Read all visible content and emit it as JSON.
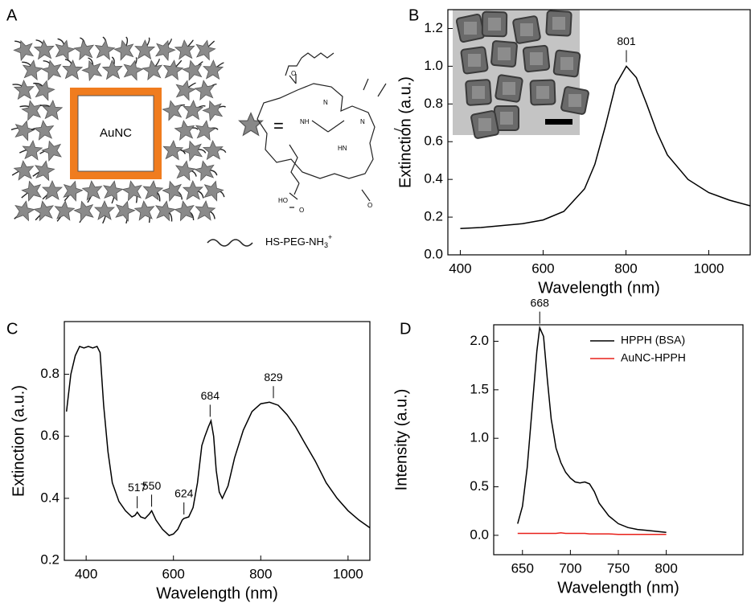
{
  "diagram": {
    "panel_label": "A",
    "core_label": "AuNC",
    "equals": "=",
    "molecule_labels": [
      "NH",
      "N",
      "N",
      "HN",
      "HO",
      "O",
      "O",
      "O"
    ],
    "legend_parts": [
      "HS-PEG-NH",
      "3",
      "+"
    ]
  },
  "chart_data": [
    {
      "type": "line",
      "panel_label": "B",
      "x_label": "Wavelength (nm)",
      "y_label": "Extinction (a.u.)",
      "x": [
        400,
        450,
        500,
        550,
        600,
        650,
        700,
        725,
        750,
        775,
        801,
        825,
        850,
        875,
        900,
        950,
        1000,
        1050,
        1100
      ],
      "series": [
        {
          "color": "#000000",
          "values": [
            0.14,
            0.145,
            0.155,
            0.165,
            0.185,
            0.23,
            0.35,
            0.48,
            0.68,
            0.9,
            1.0,
            0.94,
            0.8,
            0.65,
            0.53,
            0.4,
            0.33,
            0.29,
            0.26
          ]
        }
      ],
      "xlim": [
        370,
        1100
      ],
      "ylim": [
        0,
        1.3
      ],
      "xticks": [
        400,
        600,
        800,
        1000
      ],
      "yticks": [
        {
          "value": 0,
          "label": "0.0"
        },
        0.2,
        0.4,
        0.6,
        0.8,
        {
          "value": 1,
          "label": "1.0"
        },
        1.2
      ],
      "annotations": [
        {
          "x": 801,
          "y": 1.0
        }
      ]
    },
    {
      "type": "line",
      "panel_label": "C",
      "x_label": "Wavelength (nm)",
      "y_label": "Extinction (a.u.)",
      "x": [
        355,
        365,
        375,
        385,
        395,
        405,
        415,
        425,
        432,
        440,
        450,
        460,
        475,
        490,
        505,
        512,
        517,
        525,
        535,
        545,
        550,
        560,
        575,
        590,
        600,
        610,
        620,
        624,
        635,
        645,
        655,
        665,
        672,
        680,
        686,
        692,
        698,
        705,
        712,
        725,
        740,
        760,
        780,
        800,
        820,
        840,
        860,
        880,
        900,
        925,
        950,
        975,
        1000,
        1025,
        1050
      ],
      "series": [
        {
          "color": "#000000",
          "values": [
            0.68,
            0.8,
            0.86,
            0.89,
            0.885,
            0.89,
            0.885,
            0.89,
            0.87,
            0.7,
            0.55,
            0.45,
            0.39,
            0.36,
            0.34,
            0.345,
            0.355,
            0.34,
            0.335,
            0.35,
            0.36,
            0.33,
            0.3,
            0.28,
            0.285,
            0.3,
            0.33,
            0.335,
            0.34,
            0.37,
            0.45,
            0.57,
            0.6,
            0.63,
            0.65,
            0.6,
            0.49,
            0.42,
            0.4,
            0.44,
            0.53,
            0.62,
            0.68,
            0.705,
            0.71,
            0.7,
            0.67,
            0.63,
            0.58,
            0.52,
            0.45,
            0.4,
            0.36,
            0.33,
            0.305
          ]
        }
      ],
      "xlim": [
        350,
        1050
      ],
      "ylim": [
        0.2,
        0.97
      ],
      "xticks": [
        400,
        600,
        800,
        1000
      ],
      "yticks": [
        0.2,
        0.4,
        0.6,
        0.8
      ],
      "annotations": [
        {
          "x": 517,
          "y": 0.355
        },
        {
          "x": 550,
          "y": 0.36
        },
        {
          "x": 624,
          "y": 0.335
        },
        {
          "x": 684,
          "y": 0.65
        },
        {
          "x": 829,
          "y": 0.71
        }
      ]
    },
    {
      "type": "line",
      "panel_label": "D",
      "x_label": "Wavelength (nm)",
      "y_label": "Intensity (a.u.)",
      "x": [
        645,
        650,
        655,
        660,
        665,
        668,
        672,
        676,
        680,
        685,
        690,
        695,
        700,
        705,
        710,
        715,
        720,
        725,
        730,
        740,
        750,
        760,
        770,
        780,
        790,
        800
      ],
      "series": [
        {
          "name": "HPPH (BSA)",
          "color": "#000000",
          "values": [
            0.12,
            0.3,
            0.7,
            1.3,
            1.9,
            2.14,
            2.05,
            1.6,
            1.2,
            0.9,
            0.75,
            0.65,
            0.59,
            0.55,
            0.54,
            0.55,
            0.53,
            0.45,
            0.33,
            0.2,
            0.12,
            0.08,
            0.06,
            0.05,
            0.04,
            0.03
          ]
        },
        {
          "name": "AuNC-HPPH",
          "color": "#e8201a",
          "values": [
            0.02,
            0.02,
            0.02,
            0.02,
            0.02,
            0.02,
            0.02,
            0.02,
            0.02,
            0.02,
            0.025,
            0.02,
            0.02,
            0.02,
            0.02,
            0.02,
            0.015,
            0.015,
            0.015,
            0.015,
            0.01,
            0.01,
            0.01,
            0.01,
            0.01,
            0.01
          ]
        }
      ],
      "xlim": [
        620,
        880
      ],
      "ylim": [
        -0.2,
        2.17
      ],
      "xticks": [
        650,
        700,
        750,
        800
      ],
      "yticks": [
        {
          "value": 0,
          "label": "0.0"
        },
        0.5,
        {
          "value": 1,
          "label": "1.0"
        },
        1.5,
        {
          "value": 2,
          "label": "2.0"
        }
      ],
      "legend": "upper right",
      "annotations": [
        {
          "x": 668,
          "y": 2.14
        }
      ]
    }
  ]
}
